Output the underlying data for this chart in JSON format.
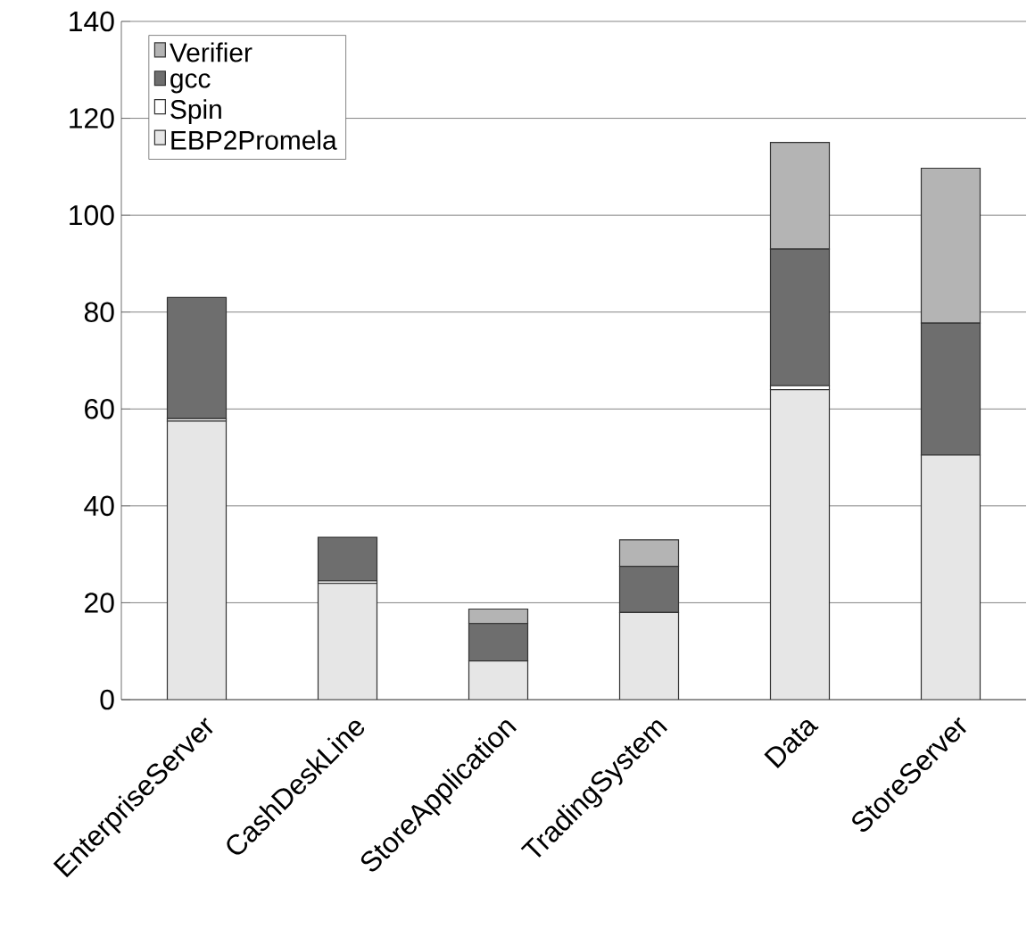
{
  "chart_data": {
    "type": "bar",
    "stacked": true,
    "categories": [
      "EnterpriseServer",
      "CashDeskLine",
      "StoreApplication",
      "TradingSystem",
      "Data",
      "StoreServer"
    ],
    "series": [
      {
        "name": "EBP2Promela",
        "color": "#e6e6e6",
        "values": [
          57.5,
          24,
          8,
          18,
          64,
          50.5
        ]
      },
      {
        "name": "Spin",
        "color": "#ffffff",
        "values": [
          0.5,
          0.5,
          null,
          0,
          0.8,
          null
        ]
      },
      {
        "name": "gcc",
        "color": "#6e6e6e",
        "values": [
          25,
          9,
          7.7,
          9.5,
          28.2,
          27.2
        ]
      },
      {
        "name": "Verifier",
        "color": "#b4b4b4",
        "values": [
          0,
          0,
          3,
          5.5,
          22,
          32
        ]
      }
    ],
    "ylim": [
      0,
      140
    ],
    "yticks": [
      0,
      20,
      40,
      60,
      80,
      100,
      120,
      140
    ],
    "grid": "y",
    "legend": "top left"
  }
}
